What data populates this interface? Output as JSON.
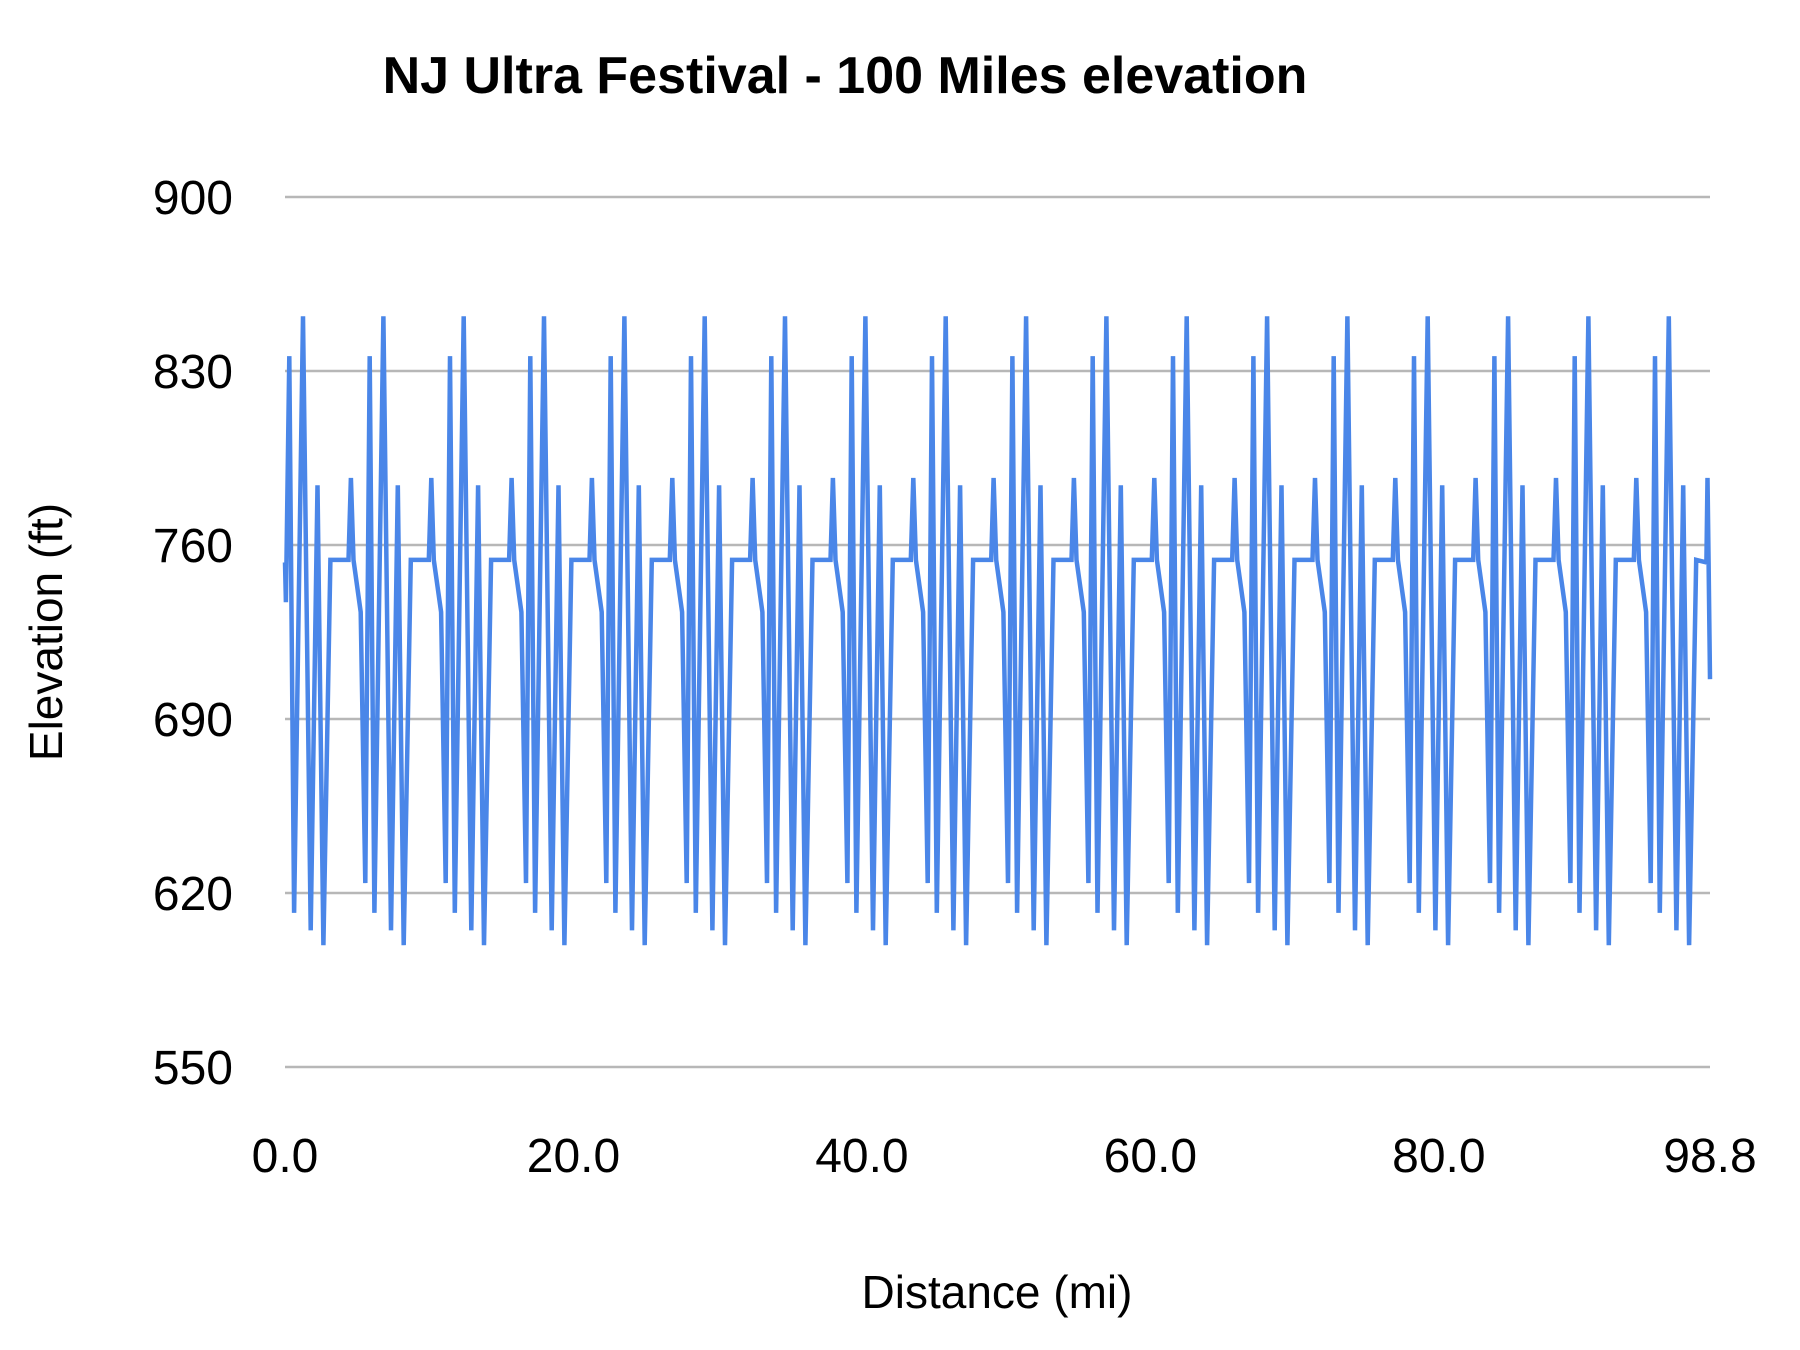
{
  "chart_data": {
    "type": "line",
    "title": "NJ Ultra Festival - 100 Miles elevation",
    "xlabel": "Distance (mi)",
    "ylabel": "Elevation (ft)",
    "x_ticks": [
      {
        "label": "0.0",
        "value": 0
      },
      {
        "label": "20.0",
        "value": 20
      },
      {
        "label": "40.0",
        "value": 40
      },
      {
        "label": "60.0",
        "value": 60
      },
      {
        "label": "80.0",
        "value": 80
      },
      {
        "label": "98.8",
        "value": 98.8
      }
    ],
    "y_ticks": [
      {
        "label": "900",
        "value": 900
      },
      {
        "label": "830",
        "value": 830
      },
      {
        "label": "760",
        "value": 760
      },
      {
        "label": "690",
        "value": 690
      },
      {
        "label": "620",
        "value": 620
      },
      {
        "label": "550",
        "value": 550
      }
    ],
    "xlim": [
      0,
      98.8
    ],
    "ylim": [
      550,
      900
    ],
    "grid": true,
    "legend_position": "none",
    "line_color": "#4a86e8",
    "gridline_color": "#b7b7b7",
    "text_color": "#000000",
    "background_color": "#ffffff",
    "series": {
      "name": "Elevation",
      "description": "Repeating loop-course elevation profile: each ~5.57 mi loop climbs to peaks of 836 ft and 852 ft, a third peak of 784 ft, valleys near 600-625 ft, then a flat plateau at 754 ft with a short 787 ft spike.",
      "start_points": [
        [
          0,
          753
        ],
        [
          0.06,
          737
        ]
      ],
      "loop": {
        "length_mi": 5.57,
        "count": 18,
        "first_peak_mile": 0.3,
        "profile_offsets_elevation": [
          [
            0.0,
            836
          ],
          [
            0.33,
            612
          ],
          [
            0.95,
            852
          ],
          [
            1.48,
            605
          ],
          [
            1.95,
            784
          ],
          [
            2.36,
            599
          ],
          [
            2.85,
            754
          ],
          [
            4.1,
            754
          ],
          [
            4.27,
            787
          ],
          [
            4.45,
            754
          ],
          [
            4.95,
            733
          ],
          [
            5.27,
            624
          ]
        ]
      },
      "clip_mile": 98.35,
      "end_points": [
        [
          98.55,
          753
        ],
        [
          98.63,
          787
        ],
        [
          98.7,
          753
        ],
        [
          98.8,
          706
        ]
      ]
    }
  }
}
